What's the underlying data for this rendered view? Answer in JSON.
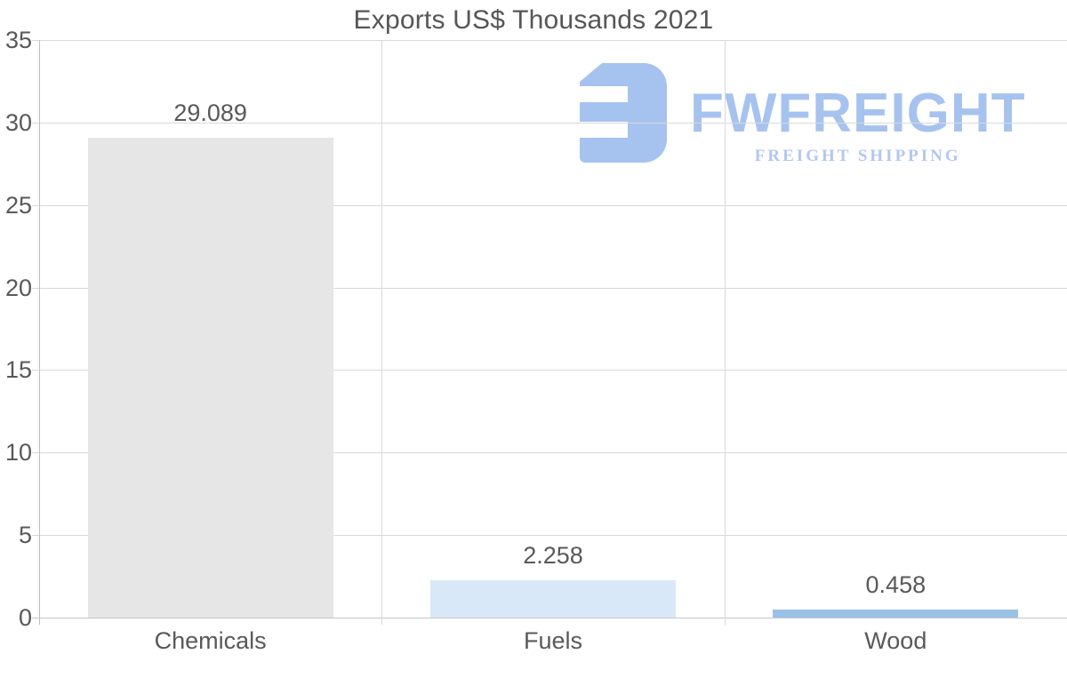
{
  "chart_data": {
    "type": "bar",
    "title": "Exports US$ Thousands 2021",
    "categories": [
      "Chemicals",
      "Fuels",
      "Wood"
    ],
    "values": [
      29.089,
      2.258,
      0.458
    ],
    "value_labels": [
      "29.089",
      "2.258",
      "0.458"
    ],
    "bar_colors": [
      "#e6e6e6",
      "#d9e8f8",
      "#9ac2e5"
    ],
    "ylim": [
      0,
      35
    ],
    "yticks": [
      0,
      5,
      10,
      15,
      20,
      25,
      30,
      35
    ],
    "ytick_labels": [
      "0",
      "5",
      "10",
      "15",
      "20",
      "25",
      "30",
      "35"
    ],
    "xlabel": "",
    "ylabel": "",
    "grid": "on",
    "legend": "none"
  },
  "watermark": {
    "brand": "FWFREIGHT",
    "tagline": "FREIGHT SHIPPING",
    "brand_color": "#a6c3ef",
    "tagline_color": "#b3c7ee",
    "glyph_color": "#a6c3ef"
  },
  "style": {
    "title_color": "#565656",
    "text_color": "#595959",
    "grid_color": "#d9d9d9",
    "axis_color": "#bfbfbf",
    "background": "#ffffff"
  }
}
